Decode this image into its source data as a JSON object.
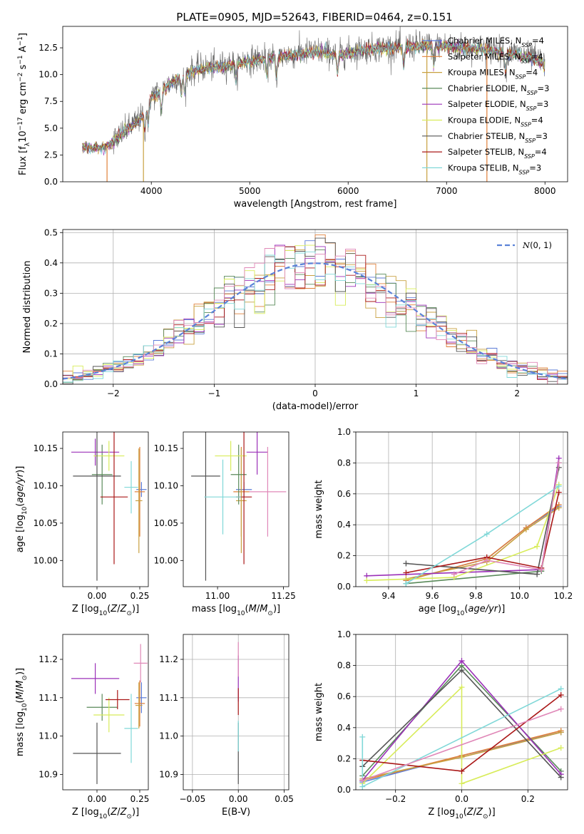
{
  "title": "PLATE=0905, MJD=52643, FIBERID=0464, z=0.151",
  "colors": {
    "Chabrier MILES": "#5b7bd6",
    "Salpeter MILES": "#e0803a",
    "Kroupa MILES": "#c8a040",
    "Chabrier ELODIE": "#5a8a5a",
    "Salpeter ELODIE": "#9b30b8",
    "Kroupa ELODIE": "#d8ec5a",
    "Chabrier STELIB": "#555555",
    "Salpeter STELIB": "#aa1818",
    "Kroupa STELIB": "#80d8d8",
    "pink": "#e088b8",
    "normal": "#5b82d8"
  },
  "legend_entries": [
    {
      "name": "Chabrier MILES",
      "prefix": "Chabrier MILES, N",
      "sub": "SSP",
      "suffix": "=4"
    },
    {
      "name": "Salpeter MILES",
      "prefix": "Salpeter MILES, N",
      "sub": "SSP",
      "suffix": "=4"
    },
    {
      "name": "Kroupa MILES",
      "prefix": "Kroupa MILES, N",
      "sub": "SSP",
      "suffix": "=4"
    },
    {
      "name": "Chabrier ELODIE",
      "prefix": "Chabrier ELODIE, N",
      "sub": "SSP",
      "suffix": "=3"
    },
    {
      "name": "Salpeter ELODIE",
      "prefix": "Salpeter ELODIE, N",
      "sub": "SSP",
      "suffix": "=3"
    },
    {
      "name": "Kroupa ELODIE",
      "prefix": "Kroupa ELODIE, N",
      "sub": "SSP",
      "suffix": "=4"
    },
    {
      "name": "Chabrier STELIB",
      "prefix": "Chabrier STELIB, N",
      "sub": "SSP",
      "suffix": "=3"
    },
    {
      "name": "Salpeter STELIB",
      "prefix": "Salpeter STELIB, N",
      "sub": "SSP",
      "suffix": "=4"
    },
    {
      "name": "Kroupa STELIB",
      "prefix": "Kroupa STELIB, N",
      "sub": "SSP",
      "suffix": "=3"
    }
  ],
  "chart_data": [
    {
      "id": "spectrum",
      "type": "line",
      "xlabel": "wavelength [Angstrom, rest frame]",
      "ylabel": "Flux [f_λ10^-17 erg cm^-2 s^-1 A^-1]",
      "xlim": [
        3100,
        8230
      ],
      "ylim": [
        0,
        14.5
      ],
      "xticks": [
        4000,
        5000,
        6000,
        7000,
        8000
      ],
      "yticks": [
        0.0,
        2.5,
        5.0,
        7.5,
        10.0,
        12.5
      ],
      "data_envelope": {
        "x": [
          3300,
          3500,
          3550,
          3700,
          3900,
          4000,
          4100,
          4300,
          4500,
          4700,
          4900,
          5100,
          5300,
          5500,
          5700,
          5900,
          6100,
          6300,
          6500,
          6700,
          6900,
          7100,
          7300,
          7500,
          7700,
          7900,
          8000
        ],
        "y": [
          3.3,
          3.2,
          3.4,
          4.5,
          6.0,
          8.0,
          8.5,
          10.0,
          10.6,
          10.8,
          11.2,
          11.5,
          11.7,
          12.0,
          12.2,
          11.9,
          12.3,
          12.5,
          12.6,
          12.7,
          12.8,
          12.6,
          12.5,
          12.3,
          12.0,
          11.5,
          11.0
        ]
      },
      "model_dropouts": [
        3550,
        3920,
        6800,
        7410
      ]
    },
    {
      "id": "residuals",
      "type": "histogram",
      "xlabel": "(data-model)/error",
      "ylabel": "Normed distribution",
      "xlim": [
        -2.5,
        2.5
      ],
      "ylim": [
        0,
        0.51
      ],
      "xticks": [
        -2,
        -1,
        0,
        1,
        2
      ],
      "yticks": [
        0.0,
        0.1,
        0.2,
        0.3,
        0.4,
        0.5
      ],
      "grid": true,
      "bin_width": 0.1,
      "normal_curve": {
        "label": "N(0,1)",
        "mean": 0,
        "sigma": 1
      },
      "legend_placement": "top-right"
    },
    {
      "id": "age_vs_Z",
      "type": "errorbar",
      "xlabel": "Z [log10(Z/Z_sun)]",
      "ylabel": "age [log10(age/yr)]",
      "xlim": [
        -0.2,
        0.3
      ],
      "ylim": [
        9.965,
        10.172
      ],
      "xticks": [
        0.0,
        0.25
      ],
      "yticks": [
        10.0,
        10.05,
        10.1,
        10.15
      ],
      "points": [
        {
          "name": "Chabrier MILES",
          "x": 0.26,
          "y": 10.095,
          "xerr": 0.03,
          "yerr": 0.01
        },
        {
          "name": "Salpeter MILES",
          "x": 0.25,
          "y": 10.092,
          "xerr": 0.03,
          "yerr": 0.06
        },
        {
          "name": "Kroupa MILES",
          "x": 0.245,
          "y": 10.08,
          "xerr": 0.02,
          "yerr": 0.07
        },
        {
          "name": "Chabrier ELODIE",
          "x": 0.03,
          "y": 10.115,
          "xerr": 0.06,
          "yerr": 0.04
        },
        {
          "name": "Salpeter ELODIE",
          "x": -0.01,
          "y": 10.145,
          "xerr": 0.14,
          "yerr": 0.018
        },
        {
          "name": "Kroupa ELODIE",
          "x": 0.07,
          "y": 10.14,
          "xerr": 0.09,
          "yerr": 0.02
        },
        {
          "name": "Chabrier STELIB",
          "x": 0.0,
          "y": 10.113,
          "xerr": 0.14,
          "yerr": 0.14
        },
        {
          "name": "Salpeter STELIB",
          "x": 0.1,
          "y": 10.085,
          "xerr": 0.08,
          "yerr": 0.09
        },
        {
          "name": "Kroupa STELIB",
          "x": 0.2,
          "y": 10.098,
          "xerr": 0.04,
          "yerr": 0.035
        }
      ]
    },
    {
      "id": "age_vs_mass",
      "type": "errorbar",
      "xlabel": "mass [log10(M/M_sun)]",
      "ylabel": "",
      "xlim": [
        10.87,
        11.27
      ],
      "ylim": [
        9.965,
        10.172
      ],
      "xticks": [
        11.0,
        11.25
      ],
      "yticks": [
        10.0,
        10.05,
        10.1,
        10.15
      ],
      "points": [
        {
          "name": "Chabrier MILES",
          "x": 11.1,
          "y": 10.095,
          "xerr": 0.03,
          "yerr": 0.01
        },
        {
          "name": "Salpeter MILES",
          "x": 11.09,
          "y": 10.092,
          "xerr": 0.03,
          "yerr": 0.06
        },
        {
          "name": "Kroupa MILES",
          "x": 11.09,
          "y": 10.08,
          "xerr": 0.02,
          "yerr": 0.07
        },
        {
          "name": "Chabrier ELODIE",
          "x": 11.08,
          "y": 10.115,
          "xerr": 0.03,
          "yerr": 0.04
        },
        {
          "name": "Salpeter ELODIE",
          "x": 11.15,
          "y": 10.145,
          "xerr": 0.04,
          "yerr": 0.03
        },
        {
          "name": "Kroupa ELODIE",
          "x": 11.05,
          "y": 10.14,
          "xerr": 0.06,
          "yerr": 0.02
        },
        {
          "name": "Chabrier STELIB",
          "x": 10.955,
          "y": 10.113,
          "xerr": 0.055,
          "yerr": 0.14
        },
        {
          "name": "Salpeter STELIB",
          "x": 11.1,
          "y": 10.085,
          "xerr": 0.03,
          "yerr": 0.09
        },
        {
          "name": "Kroupa STELIB",
          "x": 11.02,
          "y": 10.085,
          "xerr": 0.07,
          "yerr": 0.05
        },
        {
          "name": "pink",
          "x": 11.19,
          "y": 10.092,
          "xerr": 0.07,
          "yerr": 0.06
        }
      ]
    },
    {
      "id": "weight_vs_age",
      "type": "line",
      "xlabel": "age [log10(age/yr)]",
      "ylabel": "mass weight",
      "xlim": [
        9.25,
        10.22
      ],
      "ylim": [
        0,
        1.0
      ],
      "xticks": [
        9.4,
        9.6,
        9.8,
        10.0,
        10.2
      ],
      "yticks": [
        0.0,
        0.2,
        0.4,
        0.6,
        0.8,
        1.0
      ],
      "grid": true,
      "series": [
        {
          "name": "Chabrier MILES",
          "x": [
            9.48,
            9.85,
            10.03,
            10.18
          ],
          "y": [
            0.04,
            0.18,
            0.38,
            0.52
          ]
        },
        {
          "name": "Salpeter MILES",
          "x": [
            9.48,
            9.85,
            10.03,
            10.18
          ],
          "y": [
            0.04,
            0.18,
            0.38,
            0.53
          ]
        },
        {
          "name": "Kroupa MILES",
          "x": [
            9.48,
            9.85,
            10.03,
            10.18
          ],
          "y": [
            0.05,
            0.16,
            0.37,
            0.51
          ]
        },
        {
          "name": "Chabrier ELODIE",
          "x": [
            9.48,
            10.1,
            10.18
          ],
          "y": [
            0.02,
            0.1,
            0.8
          ]
        },
        {
          "name": "Salpeter ELODIE",
          "x": [
            9.3,
            10.1,
            10.18
          ],
          "y": [
            0.07,
            0.11,
            0.83
          ]
        },
        {
          "name": "Kroupa ELODIE",
          "x": [
            9.3,
            9.7,
            10.08,
            10.18
          ],
          "y": [
            0.04,
            0.06,
            0.26,
            0.66
          ]
        },
        {
          "name": "Chabrier STELIB",
          "x": [
            9.48,
            10.08,
            10.18
          ],
          "y": [
            0.15,
            0.08,
            0.77
          ]
        },
        {
          "name": "Salpeter STELIB",
          "x": [
            9.48,
            9.85,
            10.1,
            10.18
          ],
          "y": [
            0.09,
            0.19,
            0.12,
            0.61
          ]
        },
        {
          "name": "Kroupa STELIB",
          "x": [
            9.48,
            9.85,
            10.18
          ],
          "y": [
            0.02,
            0.34,
            0.65
          ]
        },
        {
          "name": "pink",
          "x": [
            9.7,
            9.85,
            10.1,
            10.18
          ],
          "y": [
            0.08,
            0.17,
            0.11,
            0.8
          ]
        }
      ]
    },
    {
      "id": "mass_vs_Z",
      "type": "errorbar",
      "xlabel": "Z [log10(Z/Z_sun)]",
      "ylabel": "mass [log10(M/M_sun)]",
      "xlim": [
        -0.2,
        0.3
      ],
      "ylim": [
        10.86,
        11.265
      ],
      "xticks": [
        0.0,
        0.25
      ],
      "yticks": [
        10.9,
        11.0,
        11.1,
        11.2
      ],
      "points": [
        {
          "name": "Chabrier MILES",
          "x": 0.26,
          "y": 11.1,
          "xerr": 0.03,
          "yerr": 0.04
        },
        {
          "name": "Salpeter MILES",
          "x": 0.25,
          "y": 11.085,
          "xerr": 0.03,
          "yerr": 0.06
        },
        {
          "name": "Kroupa MILES",
          "x": 0.245,
          "y": 11.08,
          "xerr": 0.02,
          "yerr": 0.06
        },
        {
          "name": "Chabrier ELODIE",
          "x": 0.03,
          "y": 11.075,
          "xerr": 0.09,
          "yerr": 0.035
        },
        {
          "name": "Salpeter ELODIE",
          "x": -0.01,
          "y": 11.15,
          "xerr": 0.14,
          "yerr": 0.04
        },
        {
          "name": "Kroupa ELODIE",
          "x": 0.07,
          "y": 11.055,
          "xerr": 0.09,
          "yerr": 0.045
        },
        {
          "name": "Chabrier STELIB",
          "x": 0.0,
          "y": 10.955,
          "xerr": 0.14,
          "yerr": 0.08
        },
        {
          "name": "Salpeter STELIB",
          "x": 0.12,
          "y": 11.095,
          "xerr": 0.07,
          "yerr": 0.025
        },
        {
          "name": "Kroupa STELIB",
          "x": 0.2,
          "y": 11.02,
          "xerr": 0.04,
          "yerr": 0.09
        },
        {
          "name": "pink",
          "x": 0.255,
          "y": 11.19,
          "xerr": 0.04,
          "yerr": 0.05
        }
      ]
    },
    {
      "id": "mass_vs_EBV",
      "type": "errorbar",
      "xlabel": "E(B-V)",
      "ylabel": "",
      "xlim": [
        -0.06,
        0.055
      ],
      "ylim": [
        10.86,
        11.265
      ],
      "xticks": [
        -0.05,
        0.0,
        0.05
      ],
      "yticks": [
        10.9,
        11.0,
        11.1,
        11.2
      ],
      "grid": true,
      "points": [
        {
          "name": "Chabrier STELIB",
          "x": 0.0,
          "y": 10.955,
          "xerr": 0.0,
          "yerr": 0.08
        },
        {
          "name": "Salpeter ELODIE",
          "x": 0.0,
          "y": 11.15,
          "xerr": 0.0,
          "yerr": 0.06
        },
        {
          "name": "Salpeter STELIB",
          "x": 0.0,
          "y": 11.09,
          "xerr": 0.0,
          "yerr": 0.035
        },
        {
          "name": "Kroupa STELIB",
          "x": 0.0,
          "y": 11.0,
          "xerr": 0.0,
          "yerr": 0.04
        },
        {
          "name": "pink",
          "x": 0.0,
          "y": 11.2,
          "xerr": 0.0,
          "yerr": 0.045
        }
      ]
    },
    {
      "id": "weight_vs_Z",
      "type": "line",
      "xlabel": "Z [log10(Z/Z_sun)]",
      "ylabel": "mass weight",
      "xlim": [
        -0.32,
        0.32
      ],
      "ylim": [
        0,
        1.0
      ],
      "xticks": [
        -0.2,
        0.0,
        0.2
      ],
      "yticks": [
        0.0,
        0.2,
        0.4,
        0.6,
        0.8,
        1.0
      ],
      "grid": true,
      "series": [
        {
          "name": "Chabrier MILES",
          "x": [
            -0.3,
            0.0,
            0.3
          ],
          "y": [
            0.05,
            0.22,
            0.37
          ]
        },
        {
          "name": "Salpeter MILES",
          "x": [
            -0.3,
            0.0,
            0.3
          ],
          "y": [
            0.06,
            0.22,
            0.38
          ]
        },
        {
          "name": "Kroupa MILES",
          "x": [
            -0.3,
            0.0,
            0.3
          ],
          "y": [
            0.07,
            0.21,
            0.37
          ]
        },
        {
          "name": "Chabrier ELODIE",
          "x": [
            -0.3,
            0.0,
            0.3
          ],
          "y": [
            0.09,
            0.8,
            0.12
          ]
        },
        {
          "name": "Salpeter ELODIE",
          "x": [
            -0.3,
            0.0,
            0.3
          ],
          "y": [
            0.06,
            0.83,
            0.1
          ]
        },
        {
          "name": "Kroupa ELODIE",
          "x": [
            -0.3,
            0.0,
            0.0,
            0.3
          ],
          "y": [
            0.04,
            0.66,
            0.04,
            0.27
          ]
        },
        {
          "name": "Chabrier STELIB",
          "x": [
            -0.3,
            0.0,
            0.3
          ],
          "y": [
            0.15,
            0.77,
            0.08
          ]
        },
        {
          "name": "Salpeter STELIB",
          "x": [
            -0.3,
            0.0,
            0.3
          ],
          "y": [
            0.19,
            0.12,
            0.61
          ]
        },
        {
          "name": "Kroupa STELIB",
          "x": [
            -0.3,
            -0.3,
            0.3
          ],
          "y": [
            0.34,
            0.02,
            0.65
          ]
        },
        {
          "name": "pink",
          "x": [
            -0.3,
            0.3
          ],
          "y": [
            0.06,
            0.52
          ]
        }
      ]
    }
  ]
}
